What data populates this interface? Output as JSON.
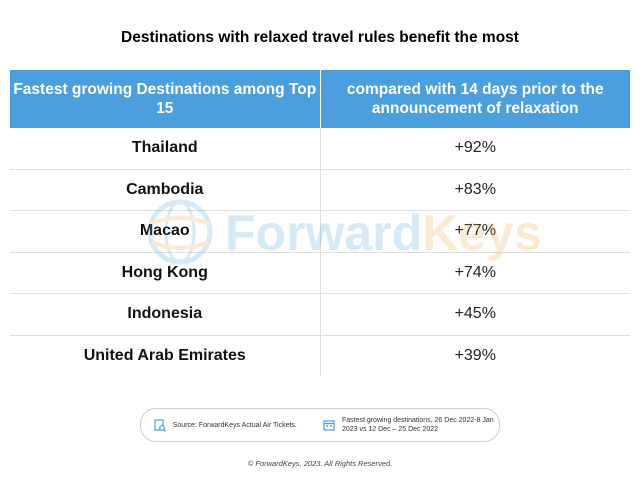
{
  "title": "Destinations with relaxed travel rules benefit the most",
  "table": {
    "headers": [
      "Fastest growing Destinations among Top 15",
      "compared with 14 days prior to the announcement of relaxation"
    ],
    "rows": [
      {
        "destination": "Thailand",
        "change": "+92%"
      },
      {
        "destination": "Cambodia",
        "change": "+83%"
      },
      {
        "destination": "Macao",
        "change": "+77%"
      },
      {
        "destination": "Hong Kong",
        "change": "+74%"
      },
      {
        "destination": "Indonesia",
        "change": "+45%"
      },
      {
        "destination": "United Arab Emirates",
        "change": "+39%"
      }
    ]
  },
  "chart_data": {
    "type": "table",
    "title": "Destinations with relaxed travel rules benefit the most",
    "columns": [
      "Fastest growing Destinations among Top 15",
      "compared with 14 days prior to the announcement of relaxation"
    ],
    "categories": [
      "Thailand",
      "Cambodia",
      "Macao",
      "Hong Kong",
      "Indonesia",
      "United Arab Emirates"
    ],
    "values": [
      92,
      83,
      77,
      74,
      45,
      39
    ],
    "unit": "%"
  },
  "watermark": {
    "part1": "Forward",
    "part2": "Keys",
    "color1": "#4a9fdc",
    "color2": "#f0a23c"
  },
  "footer": {
    "source": "Source: ForwardKeys Actual Air Tickets.",
    "period": "Fastest growing destinations, 26 Dec 2022-8 Jan 2023 vs 12 Dec – 25 Dec 2022",
    "source_icon": "document-search-icon",
    "period_icon": "calendar-icon"
  },
  "copyright": "© ForwardKeys, 2023. All Rights Reserved.",
  "colors": {
    "header_bg": "#4a9fdc",
    "header_text": "#ffffff"
  }
}
